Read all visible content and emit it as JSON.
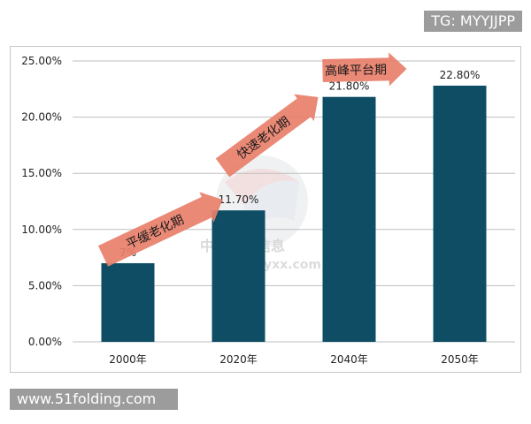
{
  "badges": {
    "top": "TG: MYYJJPP",
    "bottom": "www.51folding.com"
  },
  "watermark": {
    "text": "中商产业信息",
    "url": "hyxx.com"
  },
  "colors": {
    "bar": "#0e4d64",
    "arrow": "#e87f6a",
    "axis": "#bfbfbf",
    "badge": "#9c9c9c"
  },
  "chart_data": {
    "type": "bar",
    "categories": [
      "2000年",
      "2020年",
      "2040年",
      "2050年"
    ],
    "values": [
      7.0,
      11.7,
      21.8,
      22.8
    ],
    "data_labels": [
      "7%",
      "11.70%",
      "21.80%",
      "22.80%"
    ],
    "y_ticks": [
      "0.00%",
      "5.00%",
      "10.00%",
      "15.00%",
      "20.00%",
      "25.00%"
    ],
    "ylim": [
      0,
      25
    ],
    "grid": true,
    "title": "",
    "xlabel": "",
    "ylabel": "",
    "annotations": [
      {
        "text": "平缓老化期",
        "style": "arrow"
      },
      {
        "text": "快速老化期",
        "style": "arrow"
      },
      {
        "text": "高峰平台期",
        "style": "arrow"
      }
    ]
  }
}
